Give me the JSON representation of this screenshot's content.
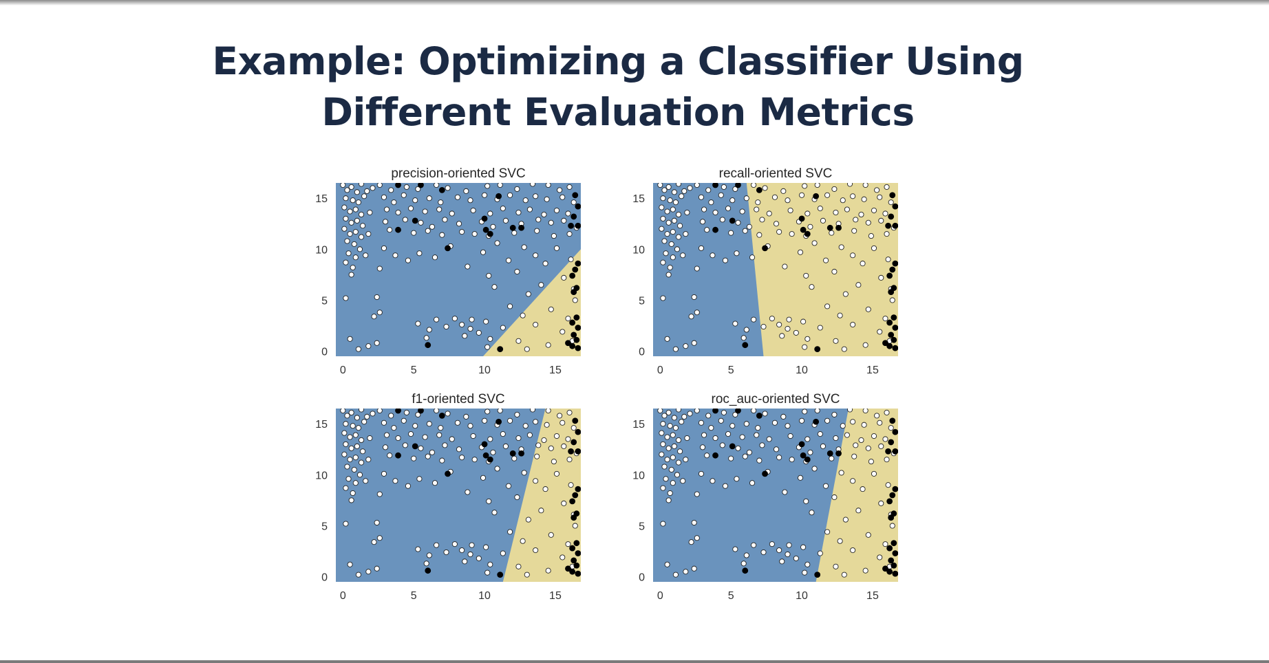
{
  "slide": {
    "title_line1": "Example: Optimizing a Classifier Using",
    "title_line2": "Different Evaluation Metrics"
  },
  "colors": {
    "negative_region": "#6a93bd",
    "positive_region": "#e5d99a",
    "negative_point": "#ffffff",
    "positive_point": "#000000",
    "title_text": "#1b2a44"
  },
  "chart_data": [
    {
      "type": "scatter",
      "title": "precision-oriented SVC",
      "xlim": [
        -0.5,
        16.8
      ],
      "ylim": [
        -0.5,
        16.5
      ],
      "xticks": [
        0,
        5,
        10,
        15
      ],
      "yticks": [
        0,
        5,
        10,
        15
      ],
      "grid": false,
      "boundary": [
        [
          9.9,
          -0.5
        ],
        [
          16.8,
          10.0
        ]
      ],
      "positive_side": "right"
    },
    {
      "type": "scatter",
      "title": "recall-oriented SVC",
      "xlim": [
        -0.5,
        16.8
      ],
      "ylim": [
        -0.5,
        16.5
      ],
      "xticks": [
        0,
        5,
        10,
        15
      ],
      "yticks": [
        0,
        5,
        10,
        15
      ],
      "grid": false,
      "boundary": [
        [
          7.3,
          -0.5
        ],
        [
          6.1,
          16.5
        ]
      ],
      "positive_side": "right"
    },
    {
      "type": "scatter",
      "title": "f1-oriented SVC",
      "xlim": [
        -0.5,
        16.8
      ],
      "ylim": [
        -0.5,
        16.5
      ],
      "xticks": [
        0,
        5,
        10,
        15
      ],
      "yticks": [
        0,
        5,
        10,
        15
      ],
      "grid": false,
      "boundary": [
        [
          11.3,
          -0.5
        ],
        [
          14.3,
          16.5
        ]
      ],
      "positive_side": "right"
    },
    {
      "type": "scatter",
      "title": "roc_auc-oriented SVC",
      "xlim": [
        -0.5,
        16.8
      ],
      "ylim": [
        -0.5,
        16.5
      ],
      "xticks": [
        0,
        5,
        10,
        15
      ],
      "yticks": [
        0,
        5,
        10,
        15
      ],
      "grid": false,
      "boundary": [
        [
          11.0,
          -0.5
        ],
        [
          13.3,
          16.5
        ]
      ],
      "positive_side": "right"
    }
  ],
  "points_negative": [
    [
      0,
      16.3
    ],
    [
      0.3,
      15.8
    ],
    [
      0.6,
      16.1
    ],
    [
      1.0,
      15.6
    ],
    [
      1.3,
      16.4
    ],
    [
      0.2,
      15.0
    ],
    [
      0.7,
      14.8
    ],
    [
      1.1,
      14.6
    ],
    [
      1.5,
      15.2
    ],
    [
      0.1,
      14.1
    ],
    [
      0.5,
      13.7
    ],
    [
      0.9,
      13.9
    ],
    [
      1.3,
      13.4
    ],
    [
      0.2,
      13.0
    ],
    [
      0.6,
      12.6
    ],
    [
      1.0,
      12.8
    ],
    [
      1.4,
      12.3
    ],
    [
      0.1,
      12.0
    ],
    [
      0.5,
      11.5
    ],
    [
      0.9,
      11.7
    ],
    [
      1.3,
      11.2
    ],
    [
      0.3,
      10.8
    ],
    [
      0.8,
      10.5
    ],
    [
      1.2,
      10.0
    ],
    [
      0.4,
      9.6
    ],
    [
      0.9,
      9.2
    ],
    [
      0.2,
      8.7
    ],
    [
      0.7,
      8.2
    ],
    [
      1.7,
      15.7
    ],
    [
      1.9,
      13.6
    ],
    [
      2.1,
      16.0
    ],
    [
      1.8,
      11.5
    ],
    [
      0.6,
      7.5
    ],
    [
      1.6,
      9.4
    ],
    [
      2.6,
      16.3
    ],
    [
      3.4,
      15.8
    ],
    [
      4.5,
      16.1
    ],
    [
      5.3,
      15.9
    ],
    [
      6.6,
      16.3
    ],
    [
      7.4,
      16.0
    ],
    [
      8.7,
      15.7
    ],
    [
      10.2,
      16.2
    ],
    [
      11.1,
      16.3
    ],
    [
      12.3,
      15.9
    ],
    [
      13.4,
      16.4
    ],
    [
      14.5,
      16.3
    ],
    [
      15.3,
      15.8
    ],
    [
      16.0,
      16.1
    ],
    [
      2.9,
      15.1
    ],
    [
      3.6,
      14.6
    ],
    [
      4.3,
      15.3
    ],
    [
      5.1,
      14.8
    ],
    [
      6.1,
      15.0
    ],
    [
      6.9,
      14.6
    ],
    [
      8.1,
      15.1
    ],
    [
      9.0,
      14.8
    ],
    [
      10.0,
      15.3
    ],
    [
      10.9,
      14.9
    ],
    [
      11.8,
      15.3
    ],
    [
      12.9,
      14.8
    ],
    [
      13.6,
      15.2
    ],
    [
      14.4,
      14.9
    ],
    [
      15.5,
      15.1
    ],
    [
      16.3,
      14.6
    ],
    [
      3.1,
      13.9
    ],
    [
      3.9,
      13.6
    ],
    [
      4.8,
      14.0
    ],
    [
      5.8,
      13.7
    ],
    [
      6.8,
      13.9
    ],
    [
      7.7,
      13.5
    ],
    [
      9.2,
      13.8
    ],
    [
      10.4,
      13.5
    ],
    [
      11.3,
      14.0
    ],
    [
      12.4,
      13.6
    ],
    [
      13.2,
      13.9
    ],
    [
      14.2,
      13.4
    ],
    [
      15.1,
      13.8
    ],
    [
      15.9,
      13.5
    ],
    [
      3.0,
      12.7
    ],
    [
      4.4,
      12.9
    ],
    [
      5.5,
      12.6
    ],
    [
      6.3,
      12.2
    ],
    [
      7.2,
      12.9
    ],
    [
      8.2,
      12.5
    ],
    [
      9.8,
      12.7
    ],
    [
      10.6,
      12.2
    ],
    [
      11.5,
      12.8
    ],
    [
      12.6,
      12.5
    ],
    [
      13.8,
      12.9
    ],
    [
      14.7,
      12.6
    ],
    [
      15.6,
      12.8
    ],
    [
      16.5,
      12.1
    ],
    [
      3.3,
      11.9
    ],
    [
      5.0,
      11.6
    ],
    [
      6.0,
      11.8
    ],
    [
      7.0,
      11.4
    ],
    [
      8.4,
      11.7
    ],
    [
      9.3,
      11.5
    ],
    [
      10.3,
      11.3
    ],
    [
      12.1,
      11.6
    ],
    [
      13.7,
      11.8
    ],
    [
      14.9,
      11.3
    ],
    [
      16.0,
      11.5
    ],
    [
      2.9,
      10.1
    ],
    [
      3.7,
      9.4
    ],
    [
      4.6,
      8.9
    ],
    [
      5.4,
      9.6
    ],
    [
      6.5,
      9.2
    ],
    [
      7.6,
      10.3
    ],
    [
      8.8,
      8.3
    ],
    [
      9.9,
      9.7
    ],
    [
      10.9,
      10.6
    ],
    [
      11.7,
      8.9
    ],
    [
      12.8,
      10.2
    ],
    [
      13.6,
      9.4
    ],
    [
      14.3,
      8.6
    ],
    [
      15.1,
      10.1
    ],
    [
      16.1,
      9.0
    ],
    [
      2.6,
      8.1
    ],
    [
      10.3,
      7.4
    ],
    [
      12.3,
      7.8
    ],
    [
      15.6,
      7.2
    ],
    [
      14.0,
      6.5
    ],
    [
      16.3,
      6.1
    ],
    [
      10.7,
      6.3
    ],
    [
      13.1,
      5.6
    ],
    [
      0.2,
      5.2
    ],
    [
      2.4,
      5.3
    ],
    [
      2.6,
      3.8
    ],
    [
      2.2,
      3.4
    ],
    [
      11.8,
      4.4
    ],
    [
      14.7,
      4.1
    ],
    [
      15.9,
      3.2
    ],
    [
      16.4,
      5.0
    ],
    [
      12.7,
      3.5
    ],
    [
      5.3,
      2.7
    ],
    [
      6.1,
      2.1
    ],
    [
      6.6,
      3.1
    ],
    [
      7.3,
      2.4
    ],
    [
      7.9,
      3.2
    ],
    [
      8.6,
      1.5
    ],
    [
      8.4,
      2.6
    ],
    [
      9.1,
      3.1
    ],
    [
      9.6,
      1.8
    ],
    [
      9.0,
      2.2
    ],
    [
      5.9,
      1.3
    ],
    [
      10.1,
      2.9
    ],
    [
      10.4,
      1.2
    ],
    [
      11.3,
      2.3
    ],
    [
      12.4,
      1.0
    ],
    [
      13.6,
      2.6
    ],
    [
      14.5,
      0.6
    ],
    [
      15.5,
      1.9
    ],
    [
      16.2,
      1.0
    ],
    [
      0.5,
      1.2
    ],
    [
      1.8,
      0.5
    ],
    [
      2.4,
      0.8
    ],
    [
      1.1,
      0.2
    ],
    [
      10.2,
      0.4
    ],
    [
      13.0,
      0.2
    ]
  ],
  "points_positive": [
    [
      3.9,
      16.3
    ],
    [
      5.5,
      16.3
    ],
    [
      7.0,
      15.8
    ],
    [
      11.0,
      15.2
    ],
    [
      16.4,
      15.3
    ],
    [
      16.6,
      14.2
    ],
    [
      16.3,
      13.2
    ],
    [
      16.6,
      12.3
    ],
    [
      5.1,
      12.8
    ],
    [
      3.9,
      11.9
    ],
    [
      10.0,
      13.0
    ],
    [
      10.4,
      11.5
    ],
    [
      10.1,
      11.9
    ],
    [
      12.0,
      12.1
    ],
    [
      12.6,
      12.1
    ],
    [
      16.1,
      12.3
    ],
    [
      7.4,
      10.1
    ],
    [
      16.6,
      8.6
    ],
    [
      16.4,
      8.0
    ],
    [
      16.2,
      7.4
    ],
    [
      16.5,
      6.2
    ],
    [
      16.3,
      5.8
    ],
    [
      16.5,
      3.3
    ],
    [
      16.2,
      2.8
    ],
    [
      16.6,
      2.3
    ],
    [
      16.3,
      1.6
    ],
    [
      16.5,
      1.1
    ],
    [
      16.2,
      0.5
    ],
    [
      16.6,
      0.3
    ],
    [
      15.9,
      0.8
    ],
    [
      6.0,
      0.6
    ],
    [
      11.1,
      0.2
    ]
  ]
}
